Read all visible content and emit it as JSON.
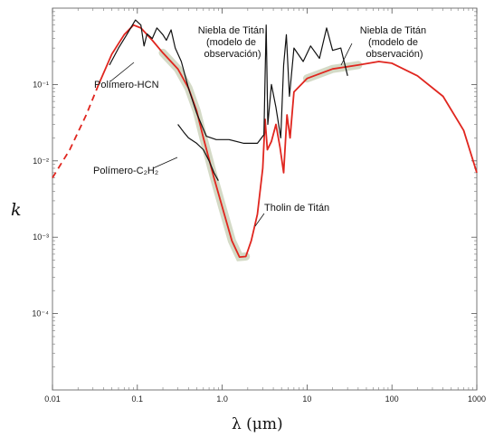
{
  "chart_data": {
    "type": "line",
    "xlabel": "λ (μm)",
    "ylabel": "k",
    "xscale": "log",
    "yscale": "log",
    "xlim": [
      0.01,
      1000
    ],
    "ylim": [
      1e-05,
      1
    ],
    "grid": false,
    "x_ticks": [
      {
        "value": 0.01,
        "label": "0.01"
      },
      {
        "value": 0.1,
        "label": "0.1"
      },
      {
        "value": 1,
        "label": "1.0"
      },
      {
        "value": 10,
        "label": "10"
      },
      {
        "value": 100,
        "label": "100"
      },
      {
        "value": 1000,
        "label": "1000"
      }
    ],
    "y_ticks": [
      {
        "value": 0.1,
        "label": "10⁻¹"
      },
      {
        "value": 0.01,
        "label": "10⁻²"
      },
      {
        "value": 0.001,
        "label": "10⁻³"
      },
      {
        "value": 0.0001,
        "label": "10⁻⁴"
      }
    ],
    "colors": {
      "tholin": "#e0261f",
      "polymer": "#111111",
      "band": "#c9d1b8"
    },
    "series": [
      {
        "name": "Tholin de Titán",
        "color": "#e0261f",
        "dashed_segment": [
          [
            0.01,
            0.006
          ],
          [
            0.016,
            0.014
          ],
          [
            0.025,
            0.04
          ],
          [
            0.035,
            0.1
          ]
        ],
        "points": [
          [
            0.035,
            0.1
          ],
          [
            0.05,
            0.25
          ],
          [
            0.07,
            0.45
          ],
          [
            0.09,
            0.6
          ],
          [
            0.11,
            0.55
          ],
          [
            0.15,
            0.38
          ],
          [
            0.2,
            0.26
          ],
          [
            0.3,
            0.16
          ],
          [
            0.4,
            0.09
          ],
          [
            0.5,
            0.045
          ],
          [
            0.6,
            0.02
          ],
          [
            0.8,
            0.006
          ],
          [
            1.0,
            0.0025
          ],
          [
            1.3,
            0.0009
          ],
          [
            1.6,
            0.00055
          ],
          [
            1.9,
            0.00056
          ],
          [
            2.2,
            0.0009
          ],
          [
            2.6,
            0.002
          ],
          [
            3.0,
            0.008
          ],
          [
            3.2,
            0.035
          ],
          [
            3.4,
            0.014
          ],
          [
            3.8,
            0.018
          ],
          [
            4.3,
            0.03
          ],
          [
            4.8,
            0.015
          ],
          [
            5.3,
            0.007
          ],
          [
            5.8,
            0.04
          ],
          [
            6.3,
            0.02
          ],
          [
            7,
            0.08
          ],
          [
            10,
            0.12
          ],
          [
            20,
            0.16
          ],
          [
            40,
            0.18
          ],
          [
            70,
            0.2
          ],
          [
            100,
            0.19
          ],
          [
            200,
            0.13
          ],
          [
            400,
            0.07
          ],
          [
            700,
            0.025
          ],
          [
            1000,
            0.007
          ]
        ]
      },
      {
        "name": "Polímero-HCN",
        "color": "#111111",
        "points": [
          [
            0.047,
            0.18
          ],
          [
            0.06,
            0.3
          ],
          [
            0.075,
            0.45
          ],
          [
            0.095,
            0.7
          ],
          [
            0.11,
            0.6
          ],
          [
            0.12,
            0.32
          ],
          [
            0.13,
            0.46
          ],
          [
            0.15,
            0.4
          ],
          [
            0.17,
            0.55
          ],
          [
            0.2,
            0.45
          ],
          [
            0.22,
            0.38
          ],
          [
            0.25,
            0.52
          ],
          [
            0.28,
            0.3
          ],
          [
            0.33,
            0.2
          ],
          [
            0.4,
            0.09
          ],
          [
            0.5,
            0.042
          ],
          [
            0.65,
            0.021
          ],
          [
            0.85,
            0.019
          ],
          [
            1.2,
            0.019
          ],
          [
            1.8,
            0.017
          ],
          [
            2.6,
            0.017
          ],
          [
            3.1,
            0.022
          ],
          [
            3.2,
            0.13
          ],
          [
            3.3,
            0.6
          ],
          [
            3.45,
            0.03
          ],
          [
            3.8,
            0.1
          ],
          [
            4.3,
            0.05
          ],
          [
            4.9,
            0.02
          ],
          [
            5.3,
            0.18
          ],
          [
            5.7,
            0.45
          ],
          [
            6.2,
            0.07
          ],
          [
            7,
            0.3
          ],
          [
            9,
            0.2
          ],
          [
            11,
            0.32
          ],
          [
            14,
            0.22
          ],
          [
            17,
            0.55
          ],
          [
            20,
            0.28
          ],
          [
            25,
            0.3
          ],
          [
            30,
            0.13
          ]
        ]
      },
      {
        "name": "Polímero-C₂H₂",
        "color": "#111111",
        "points": [
          [
            0.3,
            0.03
          ],
          [
            0.35,
            0.024
          ],
          [
            0.4,
            0.02
          ],
          [
            0.5,
            0.017
          ],
          [
            0.6,
            0.014
          ],
          [
            0.7,
            0.01
          ],
          [
            0.8,
            0.007
          ],
          [
            0.9,
            0.0055
          ]
        ]
      }
    ],
    "annotations": [
      {
        "text": "Polímero-HCN"
      },
      {
        "text": "Polímero-C₂H₂"
      },
      {
        "lines": [
          "Niebla de Titán",
          "(modelo de",
          "observación)"
        ]
      },
      {
        "lines": [
          "Niebla de Titán",
          "(modelo de",
          "observación)"
        ]
      },
      {
        "text": "Tholin de Titán"
      }
    ]
  }
}
